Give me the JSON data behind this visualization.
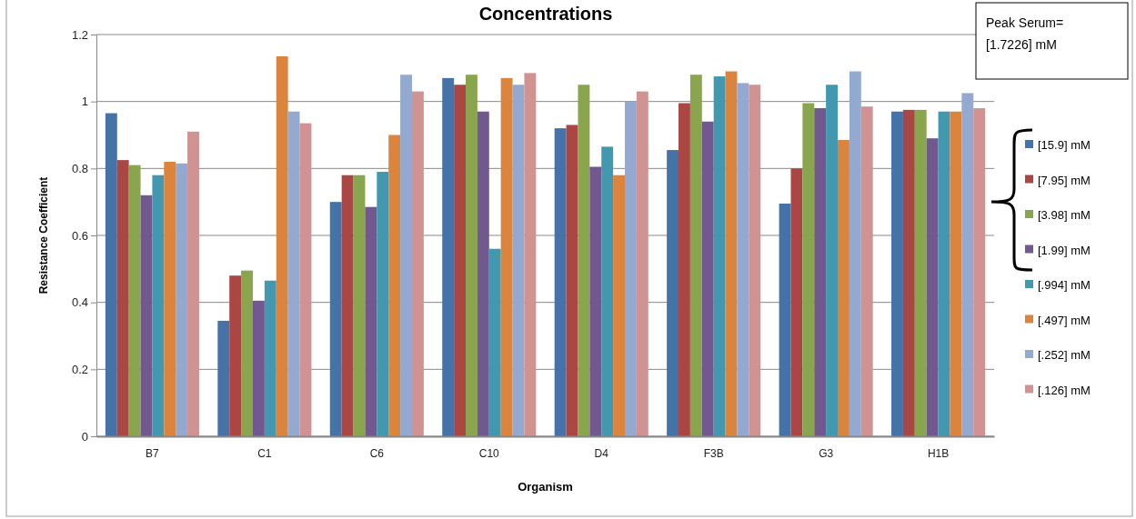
{
  "chart_data": {
    "type": "bar",
    "title": "Concentrations",
    "xlabel": "Organism",
    "ylabel": "Resistance Coefficient",
    "categories": [
      "B7",
      "C1",
      "C6",
      "C10",
      "D4",
      "F3B",
      "G3",
      "H1B"
    ],
    "series": [
      {
        "name": "[15.9] mM",
        "color": "#4572a7",
        "values": [
          0.965,
          0.345,
          0.7,
          1.07,
          0.92,
          0.855,
          0.695,
          0.97
        ]
      },
      {
        "name": "[7.95] mM",
        "color": "#aa4643",
        "values": [
          0.825,
          0.48,
          0.78,
          1.05,
          0.93,
          0.995,
          0.8,
          0.975
        ]
      },
      {
        "name": "[3.98] mM",
        "color": "#89a54e",
        "values": [
          0.81,
          0.495,
          0.78,
          1.08,
          1.05,
          1.08,
          0.995,
          0.975
        ]
      },
      {
        "name": "[1.99] mM",
        "color": "#71588f",
        "values": [
          0.72,
          0.405,
          0.685,
          0.97,
          0.805,
          0.94,
          0.98,
          0.89
        ]
      },
      {
        "name": "[.994] mM",
        "color": "#4198af",
        "values": [
          0.78,
          0.465,
          0.79,
          0.56,
          0.865,
          1.075,
          1.05,
          0.97
        ]
      },
      {
        "name": "[.497] mM",
        "color": "#db843d",
        "values": [
          0.82,
          1.135,
          0.9,
          1.07,
          0.78,
          1.09,
          0.885,
          0.97
        ]
      },
      {
        "name": "[.252] mM",
        "color": "#93a9cf",
        "values": [
          0.815,
          0.97,
          1.08,
          1.05,
          1.0,
          1.055,
          1.09,
          1.025
        ]
      },
      {
        "name": "[.126] mM",
        "color": "#d19392",
        "values": [
          0.91,
          0.935,
          1.03,
          1.085,
          1.03,
          1.05,
          0.985,
          0.98
        ]
      }
    ],
    "ylim": [
      0,
      1.2
    ],
    "yticks": [
      0,
      0.2,
      0.4,
      0.6,
      0.8,
      1,
      1.2
    ],
    "grid": "y",
    "legend": "right",
    "annotations": [
      "Peak Serum=\n[1.7226] mM"
    ]
  }
}
